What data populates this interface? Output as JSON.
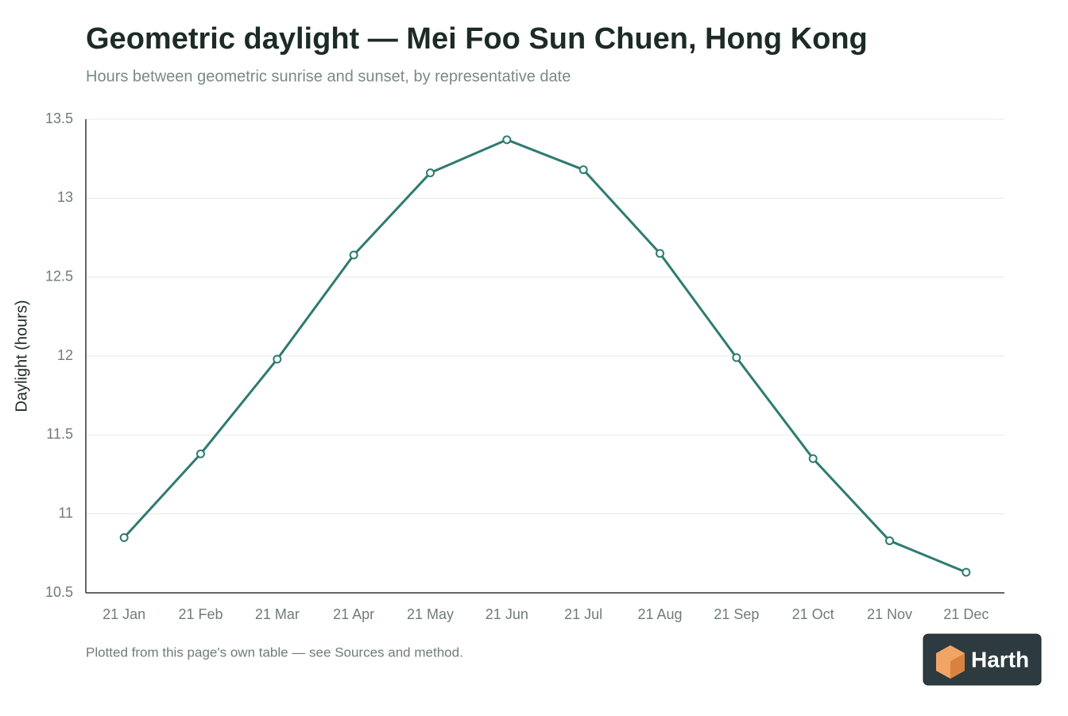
{
  "chart_data": {
    "type": "line",
    "title": "Geometric daylight — Mei Foo Sun Chuen, Hong Kong",
    "subtitle": "Hours between geometric sunrise and sunset, by representative date",
    "y_label": "Daylight (hours)",
    "categories": [
      "21 Jan",
      "21 Feb",
      "21 Mar",
      "21 Apr",
      "21 May",
      "21 Jun",
      "21 Jul",
      "21 Aug",
      "21 Sep",
      "21 Oct",
      "21 Nov",
      "21 Dec"
    ],
    "series": [
      {
        "name": "Daylight",
        "color": "#2e7b71",
        "values": [
          10.85,
          11.38,
          11.98,
          12.64,
          13.16,
          13.37,
          13.18,
          12.65,
          11.99,
          11.35,
          10.83,
          10.63
        ]
      }
    ],
    "ylim": [
      10.5,
      13.5
    ],
    "yticks": [
      10.5,
      11,
      11.5,
      12,
      12.5,
      13,
      13.5
    ],
    "grid": true,
    "footnote": "Plotted from this page's own table — see Sources and method."
  },
  "logo": "Harth"
}
